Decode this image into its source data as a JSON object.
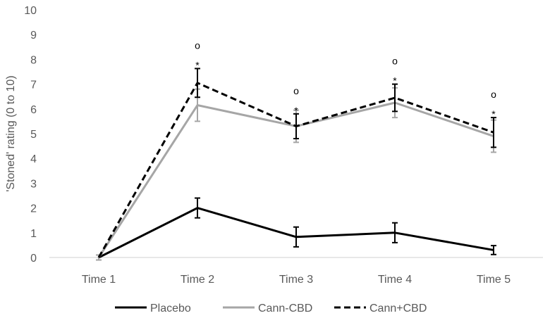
{
  "chart_data": {
    "type": "line",
    "categories": [
      "Time 1",
      "Time 2",
      "Time 3",
      "Time 4",
      "Time 5"
    ],
    "ylabel": "'Stoned' rating (0 to 10)",
    "ylim": [
      0,
      10
    ],
    "yticks": [
      0,
      1,
      2,
      3,
      4,
      5,
      6,
      7,
      8,
      9,
      10
    ],
    "grid": false,
    "legend_position": "bottom",
    "series": [
      {
        "name": "Placebo",
        "values": [
          0,
          2.0,
          0.83,
          1.0,
          0.3
        ],
        "errors": [
          0.1,
          0.4,
          0.4,
          0.4,
          0.18
        ],
        "color": "#000000",
        "style": "solid"
      },
      {
        "name": "Cann-CBD",
        "values": [
          0,
          6.15,
          5.3,
          6.25,
          4.9
        ],
        "errors": [
          0.1,
          0.65,
          0.65,
          0.6,
          0.65
        ],
        "color": "#a6a6a6",
        "style": "solid"
      },
      {
        "name": "Cann+CBD",
        "values": [
          0,
          7.05,
          5.3,
          6.45,
          5.05
        ],
        "errors": [
          0,
          0.58,
          0.5,
          0.55,
          0.6
        ],
        "color": "#000000",
        "style": "dashed"
      }
    ],
    "annotations": [
      {
        "category": "Time 2",
        "lines": [
          "o",
          "*"
        ]
      },
      {
        "category": "Time 3",
        "lines": [
          "o",
          "*"
        ]
      },
      {
        "category": "Time 4",
        "lines": [
          "o",
          "*"
        ]
      },
      {
        "category": "Time 5",
        "lines": [
          "o",
          "*"
        ]
      }
    ]
  }
}
